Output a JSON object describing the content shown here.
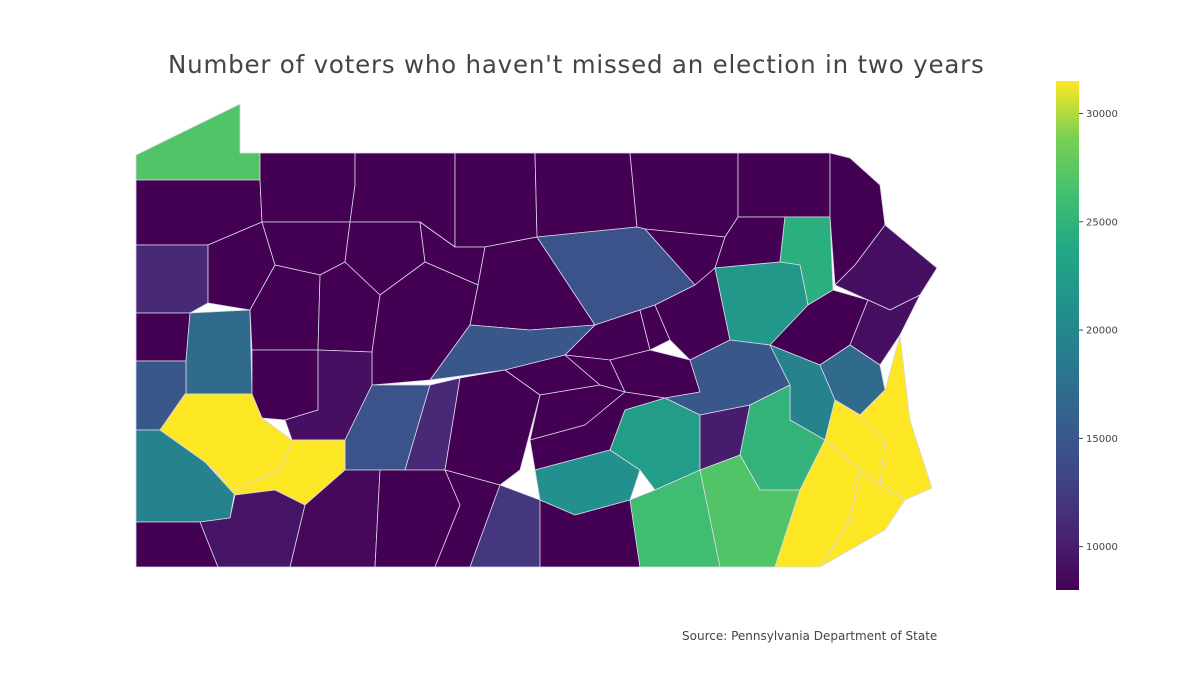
{
  "chart_data": {
    "type": "choropleth",
    "title": "Number of voters who haven't missed an election in two years",
    "source": "Source: Pennsylvania Department of State",
    "colorscale": "viridis",
    "color_range": [
      8000,
      31500
    ],
    "colorbar_ticks": [
      "10000",
      "15000",
      "20000",
      "25000",
      "30000"
    ],
    "colorbar_tick_values": [
      10000,
      15000,
      20000,
      25000,
      30000
    ],
    "regions": [
      {
        "id": "erie",
        "value": 27000
      },
      {
        "id": "crawford",
        "value": 8000
      },
      {
        "id": "warren",
        "value": 8000
      },
      {
        "id": "mckean",
        "value": 8000
      },
      {
        "id": "potter",
        "value": 8000
      },
      {
        "id": "tioga",
        "value": 8000
      },
      {
        "id": "bradford",
        "value": 8000
      },
      {
        "id": "susquehanna",
        "value": 8000
      },
      {
        "id": "wayne",
        "value": 8000
      },
      {
        "id": "mercer",
        "value": 11000
      },
      {
        "id": "venango",
        "value": 8000
      },
      {
        "id": "forest",
        "value": 8000
      },
      {
        "id": "elk",
        "value": 8000
      },
      {
        "id": "cameron",
        "value": 8000
      },
      {
        "id": "clinton",
        "value": 8000
      },
      {
        "id": "lycoming",
        "value": 14500
      },
      {
        "id": "sullivan",
        "value": 8000
      },
      {
        "id": "wyoming",
        "value": 8000
      },
      {
        "id": "lackawanna",
        "value": 24500
      },
      {
        "id": "pike",
        "value": 9000
      },
      {
        "id": "lawrence",
        "value": 8000
      },
      {
        "id": "butler",
        "value": 17000
      },
      {
        "id": "clarion",
        "value": 8000
      },
      {
        "id": "jefferson",
        "value": 8000
      },
      {
        "id": "clearfield",
        "value": 8000
      },
      {
        "id": "centre",
        "value": 15000
      },
      {
        "id": "union",
        "value": 8000
      },
      {
        "id": "montour",
        "value": 8000
      },
      {
        "id": "columbia",
        "value": 8000
      },
      {
        "id": "luzerne",
        "value": 22000
      },
      {
        "id": "carbon",
        "value": 8000
      },
      {
        "id": "monroe",
        "value": 9000
      },
      {
        "id": "beaver",
        "value": 15000
      },
      {
        "id": "allegheny",
        "value": 31500
      },
      {
        "id": "armstrong",
        "value": 8000
      },
      {
        "id": "indiana",
        "value": 9000
      },
      {
        "id": "cambria",
        "value": 14500
      },
      {
        "id": "blair",
        "value": 11000
      },
      {
        "id": "huntingdon",
        "value": 8000
      },
      {
        "id": "mifflin",
        "value": 8000
      },
      {
        "id": "snyder",
        "value": 8000
      },
      {
        "id": "northumberland",
        "value": 8000
      },
      {
        "id": "schuylkill",
        "value": 15000
      },
      {
        "id": "lehigh",
        "value": 19500
      },
      {
        "id": "northampton",
        "value": 17000
      },
      {
        "id": "washington",
        "value": 19500
      },
      {
        "id": "westmoreland",
        "value": 31500
      },
      {
        "id": "greene",
        "value": 8000
      },
      {
        "id": "fayette",
        "value": 9500
      },
      {
        "id": "somerset",
        "value": 8500
      },
      {
        "id": "bedford",
        "value": 8000
      },
      {
        "id": "fulton",
        "value": 8000
      },
      {
        "id": "franklin",
        "value": 12000
      },
      {
        "id": "juniata",
        "value": 8000
      },
      {
        "id": "perry",
        "value": 8000
      },
      {
        "id": "cumberland",
        "value": 21000
      },
      {
        "id": "dauphin",
        "value": 22500
      },
      {
        "id": "lebanon",
        "value": 10000
      },
      {
        "id": "berks",
        "value": 25000
      },
      {
        "id": "adams",
        "value": 8000
      },
      {
        "id": "york",
        "value": 26000
      },
      {
        "id": "lancaster",
        "value": 27000
      },
      {
        "id": "chester",
        "value": 31500
      },
      {
        "id": "montgomery",
        "value": 31500
      },
      {
        "id": "bucks",
        "value": 31500
      },
      {
        "id": "delaware",
        "value": 31500
      }
    ]
  }
}
